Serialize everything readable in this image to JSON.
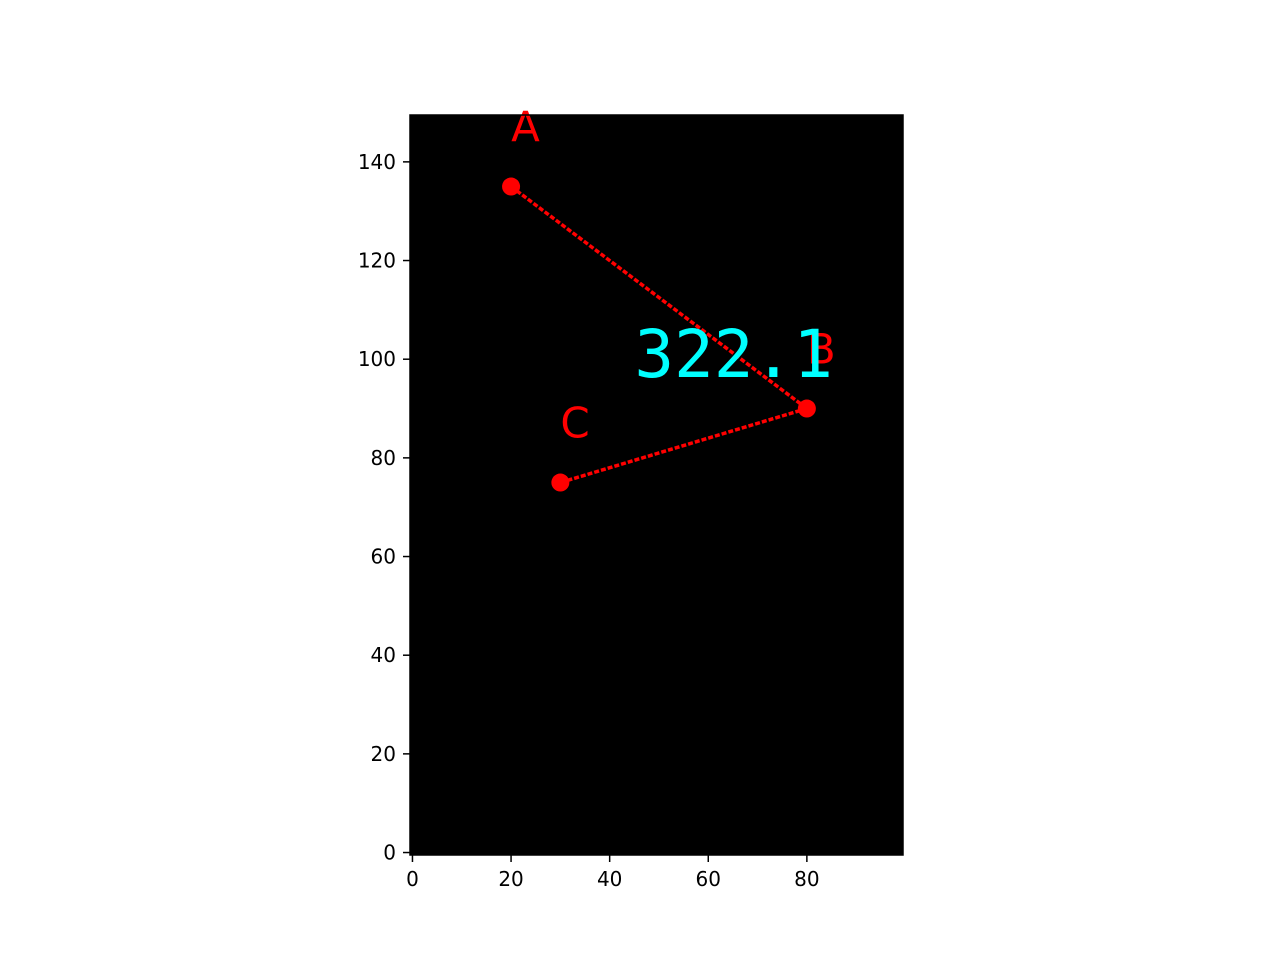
{
  "chart_data": {
    "type": "scatter",
    "title": "",
    "xlabel": "",
    "ylabel": "",
    "xlim": [
      -0.5,
      99.5
    ],
    "ylim": [
      149.5,
      -0.5
    ],
    "y_inverted": true,
    "x_ticks": [
      "0",
      "20",
      "40",
      "60",
      "80"
    ],
    "x_tick_values": [
      0,
      20,
      40,
      60,
      80
    ],
    "y_ticks": [
      "0",
      "20",
      "40",
      "60",
      "80",
      "100",
      "120",
      "140"
    ],
    "y_tick_values": [
      0,
      20,
      40,
      60,
      80,
      100,
      120,
      140
    ],
    "grid": false,
    "background_color": "#000000",
    "points": [
      {
        "label": "A",
        "x": 20,
        "y": 135
      },
      {
        "label": "B",
        "x": 80,
        "y": 90
      },
      {
        "label": "C",
        "x": 30,
        "y": 75
      }
    ],
    "polyline": [
      "A",
      "B",
      "C"
    ],
    "line_color": "#ff0000",
    "marker_color": "#ff0000",
    "label_color": "#ff0000",
    "readout": {
      "text": "322.1",
      "x": 45,
      "y": 98,
      "color": "#00ffff"
    }
  }
}
